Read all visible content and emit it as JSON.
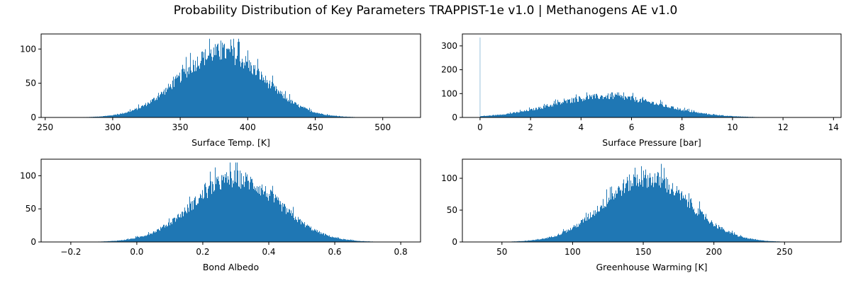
{
  "figure": {
    "title": "Probability Distribution of Key Parameters  TRAPPIST-1e v1.0 | Methanogens AE v1.0",
    "bar_color": "#1f77b4"
  },
  "chart_data": [
    {
      "type": "bar",
      "id": "surface-temp",
      "title": "",
      "xlabel": "Surface Temp. [K]",
      "ylabel": "",
      "xlim": [
        247,
        528
      ],
      "ylim": [
        0,
        122
      ],
      "xticks": [
        250,
        300,
        350,
        400,
        450,
        500
      ],
      "xtick_labels": [
        "250",
        "300",
        "350",
        "400",
        "450",
        "500"
      ],
      "yticks": [
        0,
        50,
        100
      ],
      "ytick_labels": [
        "0",
        "50",
        "100"
      ],
      "grid": false,
      "distribution": {
        "shape": "gaussian",
        "center": 380,
        "sigma": 31,
        "peak": 95,
        "range": [
          262,
          520
        ],
        "max_shown": 115
      }
    },
    {
      "type": "bar",
      "id": "surface-pressure",
      "title": "",
      "xlabel": "Surface Pressure [bar]",
      "ylabel": "",
      "xlim": [
        -0.7,
        14.3
      ],
      "ylim": [
        0,
        350
      ],
      "xticks": [
        0,
        2,
        4,
        6,
        8,
        10,
        12,
        14
      ],
      "xtick_labels": [
        "0",
        "2",
        "4",
        "6",
        "8",
        "10",
        "12",
        "14"
      ],
      "yticks": [
        0,
        100,
        200,
        300
      ],
      "ytick_labels": [
        "0",
        "100",
        "200",
        "300"
      ],
      "grid": false,
      "distribution": {
        "shape": "gaussian",
        "center": 5.0,
        "sigma": 2.1,
        "peak": 88,
        "range": [
          0.0,
          12.1
        ],
        "max_shown": 105
      },
      "spike": {
        "x": 0.0,
        "value": 335
      }
    },
    {
      "type": "bar",
      "id": "bond-albedo",
      "title": "",
      "xlabel": "Bond Albedo",
      "ylabel": "",
      "xlim": [
        -0.29,
        0.86
      ],
      "ylim": [
        0,
        125
      ],
      "xticks": [
        -0.2,
        0.0,
        0.2,
        0.4,
        0.6,
        0.8
      ],
      "xtick_labels": [
        "−0.2",
        "0.0",
        "0.2",
        "0.4",
        "0.6",
        "0.8"
      ],
      "yticks": [
        0,
        50,
        100
      ],
      "ytick_labels": [
        "0",
        "50",
        "100"
      ],
      "grid": false,
      "distribution": {
        "shape": "gaussian",
        "center": 0.3,
        "sigma": 0.13,
        "peak": 95,
        "range": [
          -0.22,
          0.82
        ],
        "max_shown": 120
      }
    },
    {
      "type": "bar",
      "id": "greenhouse-warming",
      "title": "",
      "xlabel": "Greenhouse Warming [K]",
      "ylabel": "",
      "xlim": [
        22,
        290
      ],
      "ylim": [
        0,
        130
      ],
      "xticks": [
        50,
        100,
        150,
        200,
        250
      ],
      "xtick_labels": [
        "50",
        "100",
        "150",
        "200",
        "250"
      ],
      "yticks": [
        0,
        50,
        100
      ],
      "ytick_labels": [
        "0",
        "50",
        "100"
      ],
      "grid": false,
      "distribution": {
        "shape": "gaussian",
        "center": 152,
        "sigma": 30,
        "peak": 100,
        "range": [
          30,
          280
        ],
        "max_shown": 125
      }
    }
  ]
}
